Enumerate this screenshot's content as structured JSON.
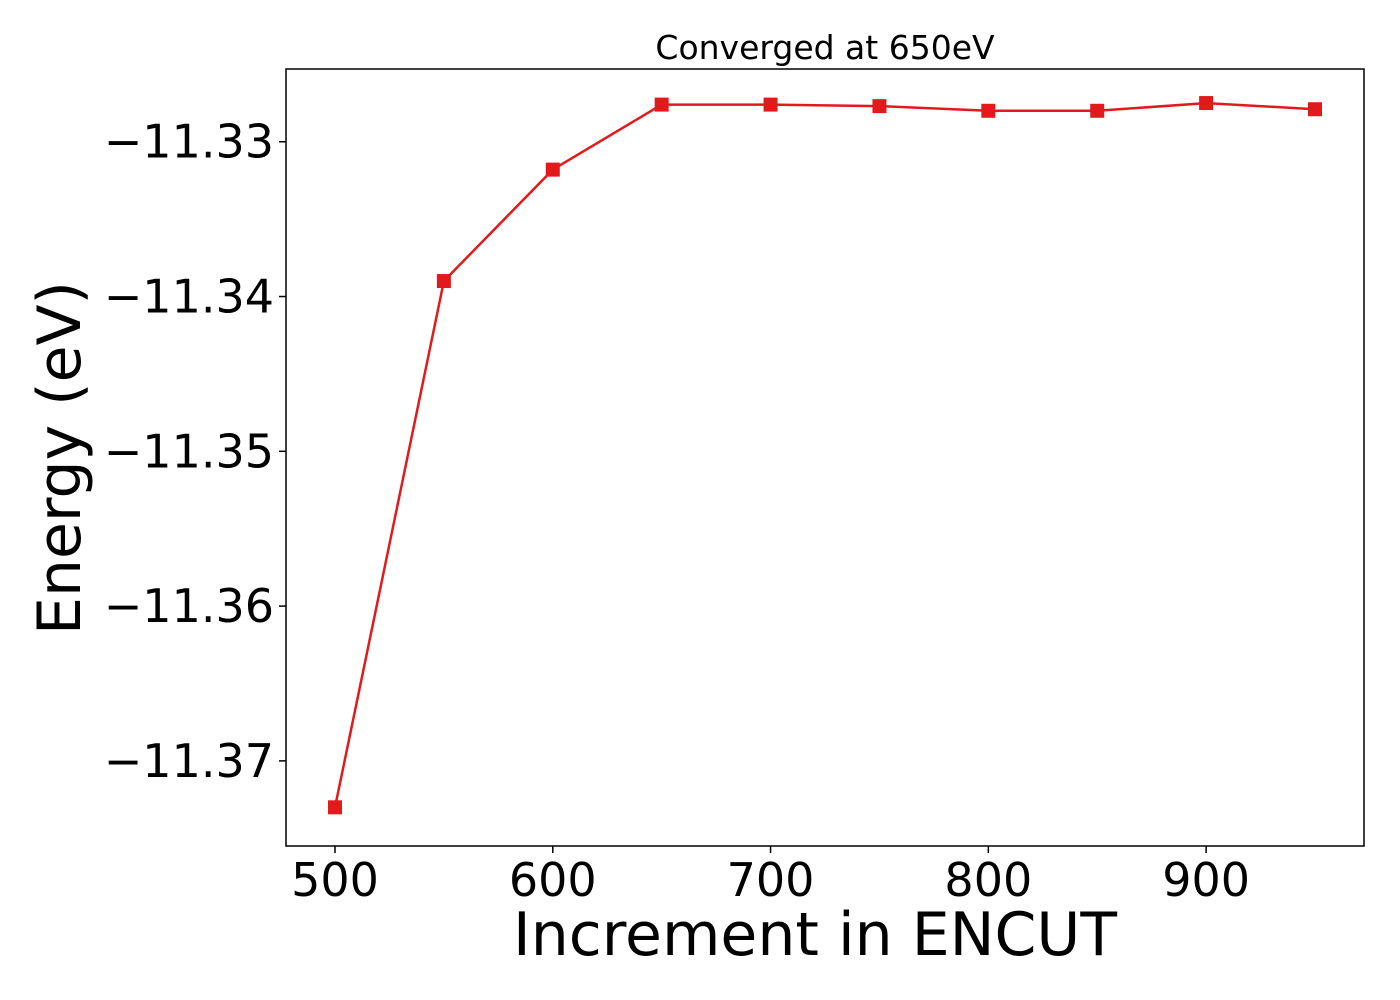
{
  "chart_data": {
    "type": "line",
    "title": "Converged at 650eV",
    "xlabel": "Increment in ENCUT",
    "ylabel": "Energy (eV)",
    "x": [
      500,
      550,
      600,
      650,
      700,
      750,
      800,
      850,
      900,
      950
    ],
    "series": [
      {
        "values": [
          -11.373,
          -11.339,
          -11.3318,
          -11.3276,
          -11.3276,
          -11.3277,
          -11.328,
          -11.328,
          -11.3275,
          -11.3279
        ],
        "color": "#e31a1c",
        "marker": "square"
      }
    ],
    "xlim": [
      477.5,
      972.5
    ],
    "ylim": [
      -11.3755,
      -11.3253
    ],
    "xticks": [
      500,
      600,
      700,
      800,
      900
    ],
    "xtick_labels": [
      "500",
      "600",
      "700",
      "800",
      "900"
    ],
    "yticks": [
      -11.37,
      -11.36,
      -11.35,
      -11.34,
      -11.33
    ],
    "ytick_labels": [
      "−11.37",
      "−11.36",
      "−11.35",
      "−11.34",
      "−11.33"
    ],
    "grid": false,
    "legend": "none"
  }
}
